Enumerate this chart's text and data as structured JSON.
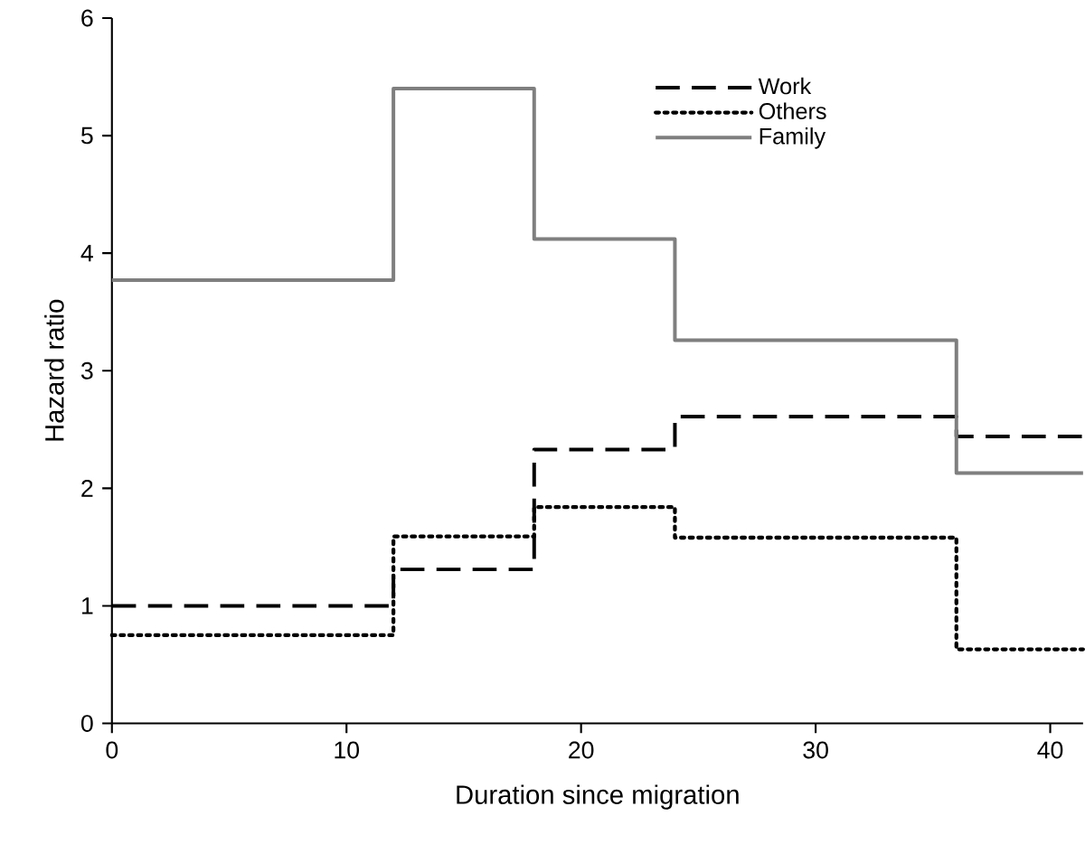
{
  "chart_data": {
    "type": "step",
    "xlabel": "Duration since migration",
    "ylabel": "Hazard ratio",
    "xlim": [
      0,
      41.4
    ],
    "ylim": [
      0,
      6
    ],
    "xticks": [
      0,
      10,
      20,
      30,
      40
    ],
    "yticks": [
      0,
      1,
      2,
      3,
      4,
      5,
      6
    ],
    "grid": false,
    "legend": "top right",
    "marker": "none",
    "series": [
      {
        "name": "Work",
        "color": "#000000",
        "line_style": "dashed",
        "x": [
          0,
          12,
          18,
          24,
          36,
          41.4
        ],
        "values": [
          1.0,
          1.31,
          2.33,
          2.61,
          2.44,
          2.44
        ]
      },
      {
        "name": "Others",
        "color": "#000000",
        "line_style": "dotted",
        "x": [
          0,
          12,
          18,
          24,
          36,
          41.4
        ],
        "values": [
          0.75,
          1.59,
          1.84,
          1.58,
          0.63,
          0.63
        ]
      },
      {
        "name": "Family",
        "color": "#7f7f7f",
        "line_style": "solid",
        "x": [
          0,
          12,
          18,
          24,
          36,
          41.4
        ],
        "values": [
          3.77,
          5.4,
          4.12,
          3.26,
          2.13,
          2.13
        ]
      }
    ]
  }
}
